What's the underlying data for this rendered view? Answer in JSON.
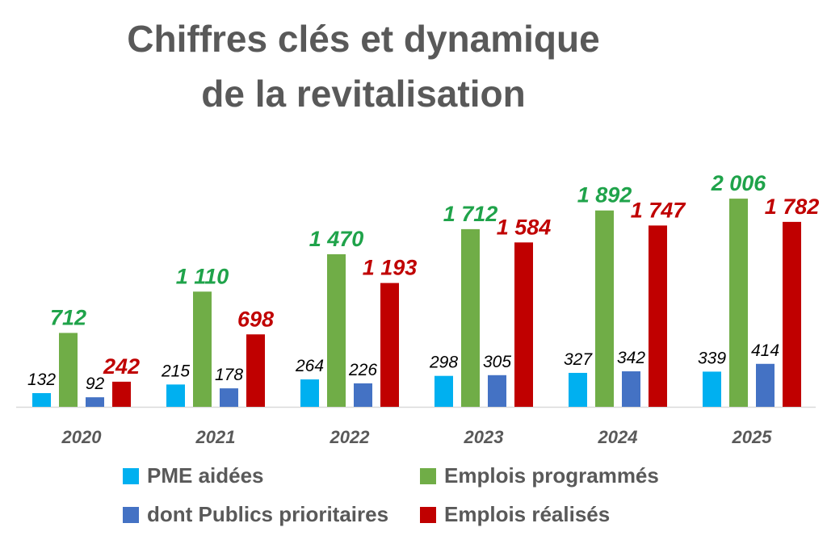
{
  "title_line1": "Chiffres clés et dynamique",
  "title_line2": "de la revitalisation",
  "chart_data": {
    "type": "bar",
    "categories": [
      "2020",
      "2021",
      "2022",
      "2023",
      "2024",
      "2025"
    ],
    "series": [
      {
        "name": "PME aidées",
        "color": "#00B0F0",
        "label_color": "#000000",
        "label_style": "italic",
        "values": [
          132,
          215,
          264,
          298,
          327,
          339
        ],
        "labels": [
          "132",
          "215",
          "264",
          "298",
          "327",
          "339"
        ]
      },
      {
        "name": "Emplois programmés",
        "color": "#70AD47",
        "label_color": "#1FA34A",
        "label_style": "bold-italic",
        "values": [
          712,
          1110,
          1470,
          1712,
          1892,
          2006
        ],
        "labels": [
          "712",
          "1 110",
          "1 470",
          "1 712",
          "1 892",
          "2 006"
        ]
      },
      {
        "name": "dont Publics prioritaires",
        "color": "#4472C4",
        "label_color": "#000000",
        "label_style": "italic",
        "values": [
          92,
          178,
          226,
          305,
          342,
          414
        ],
        "labels": [
          "92",
          "178",
          "226",
          "305",
          "342",
          "414"
        ]
      },
      {
        "name": "Emplois réalisés",
        "color": "#C00000",
        "label_color": "#C00000",
        "label_style": "bold-italic",
        "values": [
          242,
          698,
          1193,
          1584,
          1747,
          1782
        ],
        "labels": [
          "242",
          "698",
          "1 193",
          "1 584",
          "1 747",
          "1 782"
        ]
      }
    ],
    "ylim": [
      0,
      2100
    ],
    "grid": false,
    "legend_position": "bottom"
  }
}
